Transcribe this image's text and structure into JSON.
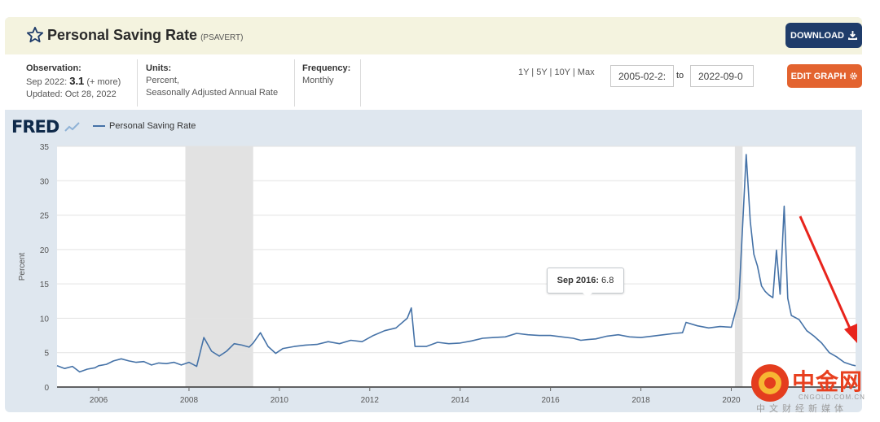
{
  "header": {
    "title": "Personal Saving Rate",
    "series_code": "(PSAVERT)",
    "download_label": "DOWNLOAD"
  },
  "info": {
    "observation_label": "Observation:",
    "observation_period": "Sep 2022:",
    "observation_value": "3.1",
    "observation_more": "(+ more)",
    "updated": "Updated: Oct 28, 2022",
    "units_label": "Units:",
    "units_line1": "Percent,",
    "units_line2": "Seasonally Adjusted Annual Rate",
    "frequency_label": "Frequency:",
    "frequency_value": "Monthly"
  },
  "controls": {
    "ranges": "1Y | 5Y | 10Y | Max",
    "start_date": "2005-02-2:",
    "to_label": "to",
    "end_date": "2022-09-0",
    "edit_label": "EDIT GRAPH"
  },
  "legend": {
    "logo": "FRED",
    "series_name": "Personal Saving Rate"
  },
  "tooltip": {
    "date": "Sep 2016:",
    "value": "6.8"
  },
  "watermark": {
    "cn": "中金网",
    "url": "CNGOLD.COM.CN",
    "sub": "中文财经新媒体"
  },
  "colors": {
    "line": "#4572a7",
    "recession": "#e2e2e2",
    "download": "#1f3c6a",
    "edit": "#e3632f",
    "arrow": "#e8241c"
  },
  "chart_data": {
    "type": "line",
    "title": "",
    "xlabel": "",
    "ylabel": "Percent",
    "ylim": [
      0,
      35
    ],
    "xlim": [
      2005.08,
      2022.75
    ],
    "yticks": [
      0,
      5,
      10,
      15,
      20,
      25,
      30,
      35
    ],
    "xticks": [
      2006,
      2008,
      2010,
      2012,
      2014,
      2016,
      2018,
      2020
    ],
    "grid": "horizontal",
    "recessions": [
      [
        2007.92,
        2009.42
      ],
      [
        2020.08,
        2020.25
      ]
    ],
    "series": [
      {
        "name": "Personal Saving Rate",
        "points": [
          [
            2005.08,
            3.1
          ],
          [
            2005.25,
            2.7
          ],
          [
            2005.42,
            3.0
          ],
          [
            2005.58,
            2.2
          ],
          [
            2005.75,
            2.6
          ],
          [
            2005.92,
            2.8
          ],
          [
            2006.0,
            3.1
          ],
          [
            2006.17,
            3.3
          ],
          [
            2006.33,
            3.8
          ],
          [
            2006.5,
            4.1
          ],
          [
            2006.67,
            3.8
          ],
          [
            2006.83,
            3.6
          ],
          [
            2007.0,
            3.7
          ],
          [
            2007.17,
            3.2
          ],
          [
            2007.33,
            3.5
          ],
          [
            2007.5,
            3.4
          ],
          [
            2007.67,
            3.6
          ],
          [
            2007.83,
            3.2
          ],
          [
            2008.0,
            3.6
          ],
          [
            2008.17,
            3.0
          ],
          [
            2008.33,
            7.2
          ],
          [
            2008.5,
            5.2
          ],
          [
            2008.67,
            4.5
          ],
          [
            2008.83,
            5.2
          ],
          [
            2009.0,
            6.3
          ],
          [
            2009.17,
            6.1
          ],
          [
            2009.33,
            5.8
          ],
          [
            2009.42,
            6.4
          ],
          [
            2009.58,
            7.9
          ],
          [
            2009.75,
            5.9
          ],
          [
            2009.92,
            4.9
          ],
          [
            2010.08,
            5.6
          ],
          [
            2010.33,
            5.9
          ],
          [
            2010.58,
            6.1
          ],
          [
            2010.83,
            6.2
          ],
          [
            2011.08,
            6.6
          ],
          [
            2011.33,
            6.3
          ],
          [
            2011.58,
            6.8
          ],
          [
            2011.83,
            6.6
          ],
          [
            2012.08,
            7.5
          ],
          [
            2012.33,
            8.2
          ],
          [
            2012.58,
            8.6
          ],
          [
            2012.83,
            10.0
          ],
          [
            2012.92,
            11.5
          ],
          [
            2013.0,
            5.9
          ],
          [
            2013.25,
            5.9
          ],
          [
            2013.5,
            6.5
          ],
          [
            2013.75,
            6.3
          ],
          [
            2014.0,
            6.4
          ],
          [
            2014.25,
            6.7
          ],
          [
            2014.5,
            7.1
          ],
          [
            2014.75,
            7.2
          ],
          [
            2015.0,
            7.3
          ],
          [
            2015.25,
            7.8
          ],
          [
            2015.5,
            7.6
          ],
          [
            2015.75,
            7.5
          ],
          [
            2016.0,
            7.5
          ],
          [
            2016.25,
            7.3
          ],
          [
            2016.5,
            7.1
          ],
          [
            2016.67,
            6.8
          ],
          [
            2016.83,
            6.9
          ],
          [
            2017.0,
            7.0
          ],
          [
            2017.25,
            7.4
          ],
          [
            2017.5,
            7.6
          ],
          [
            2017.75,
            7.3
          ],
          [
            2018.0,
            7.2
          ],
          [
            2018.25,
            7.4
          ],
          [
            2018.5,
            7.6
          ],
          [
            2018.75,
            7.8
          ],
          [
            2018.92,
            7.9
          ],
          [
            2019.0,
            9.4
          ],
          [
            2019.25,
            8.9
          ],
          [
            2019.5,
            8.6
          ],
          [
            2019.75,
            8.8
          ],
          [
            2020.0,
            8.7
          ],
          [
            2020.17,
            12.9
          ],
          [
            2020.33,
            33.8
          ],
          [
            2020.42,
            24.1
          ],
          [
            2020.5,
            19.3
          ],
          [
            2020.58,
            17.6
          ],
          [
            2020.67,
            14.7
          ],
          [
            2020.75,
            13.9
          ],
          [
            2020.83,
            13.4
          ],
          [
            2020.92,
            13.0
          ],
          [
            2021.0,
            19.9
          ],
          [
            2021.08,
            13.5
          ],
          [
            2021.17,
            26.3
          ],
          [
            2021.25,
            12.9
          ],
          [
            2021.33,
            10.4
          ],
          [
            2021.5,
            9.8
          ],
          [
            2021.67,
            8.2
          ],
          [
            2021.83,
            7.4
          ],
          [
            2022.0,
            6.4
          ],
          [
            2022.17,
            5.0
          ],
          [
            2022.33,
            4.4
          ],
          [
            2022.5,
            3.6
          ],
          [
            2022.67,
            3.2
          ],
          [
            2022.75,
            3.1
          ]
        ]
      }
    ]
  }
}
